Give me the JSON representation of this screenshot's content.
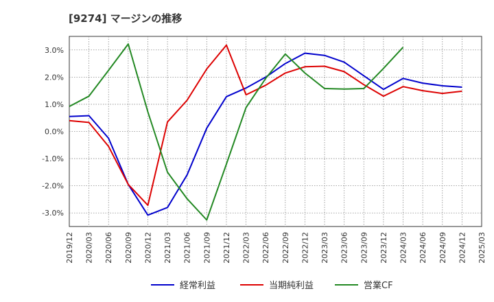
{
  "title": "[9274]  マージンの推移",
  "chart_data": {
    "type": "line",
    "title": "[9274]  マージンの推移",
    "xlabel": "",
    "ylabel": "",
    "x": [
      "2019/12",
      "2020/03",
      "2020/06",
      "2020/09",
      "2020/12",
      "2021/03",
      "2021/06",
      "2021/09",
      "2021/12",
      "2022/03",
      "2022/06",
      "2022/09",
      "2022/12",
      "2023/03",
      "2023/06",
      "2023/09",
      "2023/12",
      "2024/03",
      "2024/06",
      "2024/09",
      "2024/12",
      "2025/03"
    ],
    "y_ticks": [
      3.0,
      2.0,
      1.0,
      0.0,
      -1.0,
      -2.0,
      -3.0
    ],
    "y_tick_labels": [
      "3.0%",
      "2.0%",
      "1.0%",
      "0.0%",
      "-1.0%",
      "-2.0%",
      "-3.0%"
    ],
    "ylim": [
      -3.5,
      3.5
    ],
    "grid": true,
    "legend_position": "bottom",
    "series": [
      {
        "name": "経常利益",
        "color": "#0000cc",
        "values": [
          0.55,
          0.58,
          -0.25,
          -1.95,
          -3.08,
          -2.8,
          -1.6,
          0.12,
          1.28,
          1.6,
          2.0,
          2.5,
          2.88,
          2.8,
          2.55,
          2.05,
          1.55,
          1.95,
          1.78,
          1.68,
          1.63,
          null
        ]
      },
      {
        "name": "当期純利益",
        "color": "#dd0000",
        "values": [
          0.4,
          0.33,
          -0.55,
          -1.95,
          -2.72,
          0.35,
          1.15,
          2.3,
          3.18,
          1.35,
          1.7,
          2.15,
          2.38,
          2.4,
          2.2,
          1.72,
          1.3,
          1.65,
          1.5,
          1.4,
          1.48,
          null
        ]
      },
      {
        "name": "営業CF",
        "color": "#228822",
        "values": [
          0.92,
          1.3,
          2.25,
          3.22,
          0.72,
          -1.5,
          -2.48,
          -3.26,
          -1.2,
          0.88,
          1.95,
          2.85,
          2.15,
          1.58,
          1.56,
          1.58,
          2.32,
          3.1,
          null,
          null,
          null,
          null
        ]
      }
    ]
  }
}
